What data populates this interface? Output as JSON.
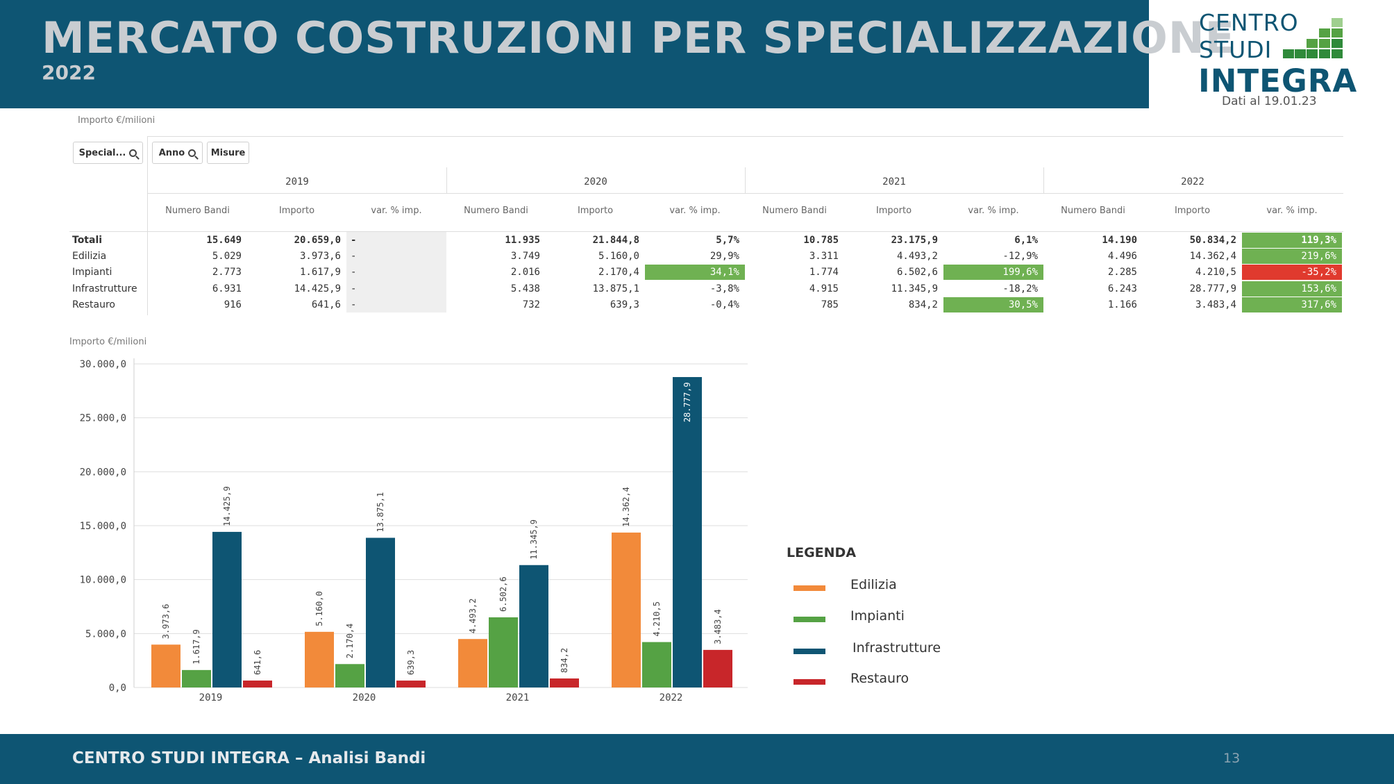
{
  "header": {
    "title": "MERCATO COSTRUZIONI PER SPECIALIZZAZIONE",
    "subtitle": "2022",
    "logo_line1": "CENTRO",
    "logo_line2": "STUDI",
    "logo_line3": "INTEGRA",
    "date_note": "Dati al 19.01.23"
  },
  "colors": {
    "header_bg": "#0e5573",
    "edilizia": "#f28a3a",
    "impianti": "#55a244",
    "infrastrutture": "#0e5573",
    "restauro": "#c8262a",
    "highlight_green": "#6fb152",
    "highlight_red": "#e03a2e"
  },
  "table": {
    "caption": "Importo €/milioni",
    "filters": [
      "Special...",
      "Anno",
      "Misure"
    ],
    "years": [
      "2019",
      "2020",
      "2021",
      "2022"
    ],
    "columns": [
      "Numero Bandi",
      "Importo",
      "var. % imp."
    ],
    "rows": [
      {
        "label": "Totali",
        "bold": true,
        "values": [
          [
            "15.649",
            "20.659,0",
            "-"
          ],
          [
            "11.935",
            "21.844,8",
            "5,7%"
          ],
          [
            "10.785",
            "23.175,9",
            "6,1%"
          ],
          [
            "14.190",
            "50.834,2",
            "119,3%"
          ]
        ]
      },
      {
        "label": "Edilizia",
        "values": [
          [
            "5.029",
            "3.973,6",
            "-"
          ],
          [
            "3.749",
            "5.160,0",
            "29,9%"
          ],
          [
            "3.311",
            "4.493,2",
            "-12,9%"
          ],
          [
            "4.496",
            "14.362,4",
            "219,6%"
          ]
        ]
      },
      {
        "label": "Impianti",
        "values": [
          [
            "2.773",
            "1.617,9",
            "-"
          ],
          [
            "2.016",
            "2.170,4",
            "34,1%"
          ],
          [
            "1.774",
            "6.502,6",
            "199,6%"
          ],
          [
            "2.285",
            "4.210,5",
            "-35,2%"
          ]
        ]
      },
      {
        "label": "Infrastrutture",
        "values": [
          [
            "6.931",
            "14.425,9",
            "-"
          ],
          [
            "5.438",
            "13.875,1",
            "-3,8%"
          ],
          [
            "4.915",
            "11.345,9",
            "-18,2%"
          ],
          [
            "6.243",
            "28.777,9",
            "153,6%"
          ]
        ]
      },
      {
        "label": "Restauro",
        "values": [
          [
            "916",
            "641,6",
            "-"
          ],
          [
            "732",
            "639,3",
            "-0,4%"
          ],
          [
            "785",
            "834,2",
            "30,5%"
          ],
          [
            "1.166",
            "3.483,4",
            "317,6%"
          ]
        ]
      }
    ],
    "highlights": {
      "green": [
        [
          2,
          1
        ],
        [
          2,
          2
        ],
        [
          4,
          2
        ],
        [
          0,
          3
        ],
        [
          1,
          3
        ],
        [
          3,
          3
        ],
        [
          4,
          3
        ]
      ],
      "red": [
        [
          2,
          3
        ]
      ]
    }
  },
  "chart_data": {
    "type": "bar",
    "title": "",
    "ylabel": "Importo €/milioni",
    "xlabel": "",
    "categories": [
      "2019",
      "2020",
      "2021",
      "2022"
    ],
    "ylim": [
      0,
      30000
    ],
    "yticks": [
      "0,0",
      "5.000,0",
      "10.000,0",
      "15.000,0",
      "20.000,0",
      "25.000,0",
      "30.000,0"
    ],
    "grid": true,
    "series": [
      {
        "name": "Edilizia",
        "color": "#f28a3a",
        "values": [
          3973.6,
          5160.0,
          4493.2,
          14362.4
        ],
        "labels": [
          "3.973,6",
          "5.160,0",
          "4.493,2",
          "14.362,4"
        ]
      },
      {
        "name": "Impianti",
        "color": "#55a244",
        "values": [
          1617.9,
          2170.4,
          6502.6,
          4210.5
        ],
        "labels": [
          "1.617,9",
          "2.170,4",
          "6.502,6",
          "4.210,5"
        ]
      },
      {
        "name": "Infrastrutture",
        "color": "#0e5573",
        "values": [
          14425.9,
          13875.1,
          11345.9,
          28777.9
        ],
        "labels": [
          "14.425,9",
          "13.875,1",
          "11.345,9",
          "28.777,9"
        ]
      },
      {
        "name": "Restauro",
        "color": "#c8262a",
        "values": [
          641.6,
          639.3,
          834.2,
          3483.4
        ],
        "labels": [
          "641,6",
          "639,3",
          "834,2",
          "3.483,4"
        ]
      }
    ],
    "legend": {
      "title": "LEGENDA",
      "placement": "right"
    }
  },
  "footer": {
    "text": "CENTRO STUDI INTEGRA – Analisi Bandi",
    "page": "13"
  }
}
